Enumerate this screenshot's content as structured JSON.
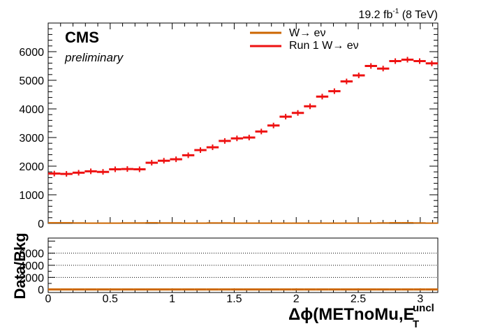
{
  "header": {
    "lumi_value": "19.2 fb",
    "lumi_exp": "-1",
    "lumi_energy": " (8 TeV)",
    "experiment": "CMS",
    "status": "preliminary"
  },
  "xaxis": {
    "label_main": "Δϕ(METnoMu,E",
    "label_sub": "T",
    "label_sup": "uncl"
  },
  "ratio_ylabel": "Data/Bkg",
  "colors": {
    "mc": "#cc6600",
    "data": "#ee1111"
  },
  "chart_data": [
    {
      "type": "line",
      "panel": "main",
      "xlim": [
        0,
        3.1416
      ],
      "ylim": [
        0,
        7000
      ],
      "x_ticks": [
        0,
        0.5,
        1,
        1.5,
        2,
        2.5,
        3
      ],
      "x_tick_labels": [
        "0",
        "0.5",
        "1",
        "1.5",
        "2",
        "2.5",
        "3"
      ],
      "y_ticks": [
        0,
        1000,
        2000,
        3000,
        4000,
        5000,
        6000
      ],
      "y_tick_labels": [
        "0",
        "1000",
        "2000",
        "3000",
        "4000",
        "5000",
        "6000"
      ],
      "legend_position": "top-center",
      "bin_width": 0.0982,
      "series": [
        {
          "name": "W→ eν",
          "style": "line",
          "color": "#cc6600",
          "values": [
            20,
            20,
            15,
            10,
            10,
            10,
            15,
            15,
            20,
            15,
            15,
            10,
            10,
            15,
            15,
            10,
            10,
            10,
            10,
            10,
            10,
            10,
            10,
            10,
            10,
            10,
            10,
            15,
            20,
            20,
            15,
            10
          ]
        },
        {
          "name": "Run 1 W→ eν",
          "style": "points",
          "color": "#ee1111",
          "values": [
            1740,
            1730,
            1770,
            1820,
            1800,
            1890,
            1900,
            1890,
            2120,
            2190,
            2240,
            2380,
            2560,
            2660,
            2880,
            2970,
            3000,
            3210,
            3420,
            3730,
            3860,
            4090,
            4430,
            4620,
            4960,
            5170,
            5500,
            5410,
            5670,
            5720,
            5670,
            5590
          ]
        }
      ]
    },
    {
      "type": "line",
      "panel": "ratio",
      "xlim": [
        0,
        3.1416
      ],
      "ylim": [
        -500,
        8500
      ],
      "y_ticks": [
        0,
        2000,
        4000,
        6000
      ],
      "y_tick_labels": [
        "0",
        "2000",
        "4000",
        "6000"
      ],
      "gridlines": [
        2000,
        4000,
        6000
      ],
      "series": [
        {
          "name": "",
          "color": "#ee1111",
          "values": [
            0,
            0,
            0,
            0,
            0,
            0,
            0,
            0,
            0,
            0,
            0,
            0,
            0,
            0,
            0,
            0,
            0,
            0,
            0,
            0,
            0,
            0,
            0,
            0,
            0,
            0,
            0,
            0,
            0,
            0,
            0,
            0
          ]
        }
      ]
    }
  ]
}
